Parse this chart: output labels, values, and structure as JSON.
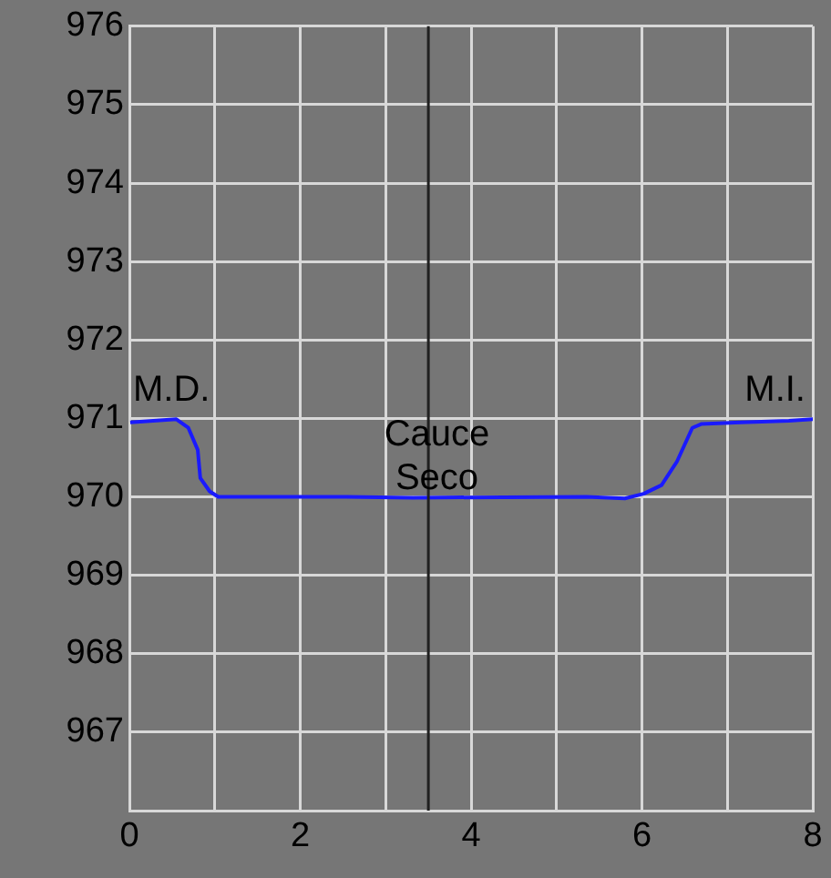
{
  "chart_data": {
    "type": "line",
    "x": [
      0.01,
      0.55,
      0.69,
      0.8,
      0.83,
      0.94,
      1.04,
      2.54,
      3.32,
      5.35,
      5.8,
      6.02,
      6.23,
      6.41,
      6.59,
      6.7,
      7.16,
      7.72,
      8.0
    ],
    "series": [
      {
        "color": "#1a1aff",
        "values": [
          970.95,
          970.99,
          970.88,
          970.6,
          970.24,
          970.07,
          970.0,
          970.0,
          969.99,
          970.0,
          969.98,
          970.04,
          970.15,
          970.45,
          970.88,
          970.93,
          970.95,
          970.97,
          970.99
        ]
      }
    ],
    "xlim": [
      0,
      8
    ],
    "xticks": [
      0,
      {
        "value": 1,
        "label": null
      },
      2,
      {
        "value": 3,
        "label": null
      },
      4,
      {
        "value": 5,
        "label": null
      },
      6,
      {
        "value": 7,
        "label": null
      },
      8
    ],
    "ylim": [
      966,
      976
    ],
    "yticks": [
      {
        "value": 966,
        "label": null
      },
      967,
      968,
      969,
      970,
      971,
      972,
      973,
      974,
      975,
      976
    ],
    "grid": true,
    "marker": "none",
    "line_style": "solid",
    "legend": false,
    "ref_lines": [
      {
        "axis": "x",
        "value": 3.5,
        "label": null,
        "color": "#202020"
      }
    ],
    "annotations": [
      "M.D.",
      "M.I.",
      {
        "text": "Cauce Seco",
        "x": 3.6,
        "y": 970.5
      }
    ]
  }
}
